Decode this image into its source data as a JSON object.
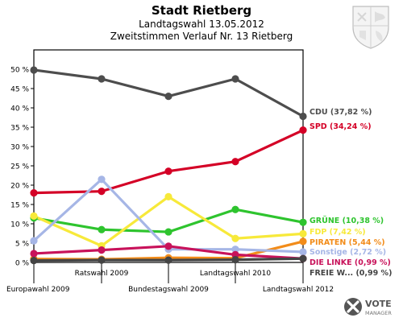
{
  "header": {
    "title": "Stadt Rietberg",
    "subtitle1": "Landtagswahl 13.05.2012",
    "subtitle2": "Zweitstimmen Verlauf Nr. 13 Rietberg"
  },
  "branding": {
    "logo_word1": "VOTE",
    "logo_word2": "MANAGER",
    "crest_icon": "coat-of-arms-icon",
    "logo_icon": "vote-manager-logo-icon"
  },
  "chart_data": {
    "type": "line",
    "categories": [
      "Europawahl 2009",
      "Ratswahl 2009",
      "Bundestagswahl 2009",
      "Landtagswahl 2010",
      "Landtagswahl 2012"
    ],
    "category_label_rows": [
      2,
      1,
      2,
      1,
      2
    ],
    "ylim": [
      0,
      55
    ],
    "yticks": [
      0,
      5,
      10,
      15,
      20,
      25,
      30,
      35,
      40,
      45,
      50
    ],
    "ytick_labels": [
      "0 %",
      "5 %",
      "10 %",
      "15 %",
      "20 %",
      "25 %",
      "30 %",
      "35 %",
      "40 %",
      "45 %",
      "50 %"
    ],
    "grid": false,
    "series": [
      {
        "name": "CDU",
        "label": "CDU (37,82 %)",
        "color": "#4d4d4d",
        "values": [
          49.8,
          47.5,
          43.0,
          47.5,
          37.82
        ]
      },
      {
        "name": "SPD",
        "label": "SPD (34,24 %)",
        "color": "#d40026",
        "values": [
          18.0,
          18.4,
          23.6,
          26.1,
          34.24
        ]
      },
      {
        "name": "GRÜNE",
        "label": "GRÜNE (10,38 %)",
        "color": "#2ec42e",
        "values": [
          11.5,
          8.5,
          7.9,
          13.7,
          10.38
        ]
      },
      {
        "name": "FDP",
        "label": "FDP (7,42 %)",
        "color": "#f7e93a",
        "values": [
          12.0,
          4.3,
          17.0,
          6.2,
          7.42
        ]
      },
      {
        "name": "PIRATEN",
        "label": "PIRATEN (5,44 %)",
        "color": "#f28c1a",
        "values": [
          0.9,
          0.8,
          1.2,
          1.1,
          5.44
        ]
      },
      {
        "name": "Sonstige",
        "label": "Sonstige (2,72 %)",
        "color": "#a6b6e6",
        "values": [
          5.6,
          21.5,
          3.4,
          3.4,
          2.72
        ]
      },
      {
        "name": "DIE LINKE",
        "label": "DIE LINKE (0,99 %)",
        "color": "#c8125a",
        "values": [
          2.3,
          3.2,
          4.2,
          2.0,
          0.99
        ]
      },
      {
        "name": "FREIE W...",
        "label": "FREIE W... (0,99 %)",
        "color": "#444444",
        "values": [
          0.5,
          0.6,
          0.6,
          0.7,
          0.99
        ]
      }
    ]
  }
}
